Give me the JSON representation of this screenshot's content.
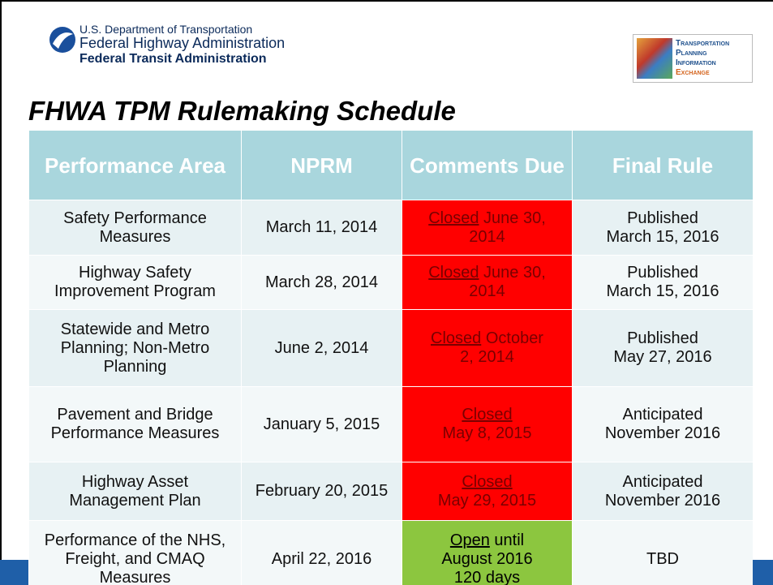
{
  "header": {
    "agency_lines": [
      "U.S. Department of Transportation",
      "Federal Highway Administration",
      "Federal Transit Administration"
    ],
    "exchange_lines": [
      "Transportation",
      "Planning",
      "Information",
      "Exchange"
    ]
  },
  "title": "FHWA TPM Rulemaking Schedule",
  "table": {
    "columns": [
      "Performance Area",
      "NPRM",
      "Comments Due",
      "Final Rule"
    ],
    "rows": [
      {
        "area": "Safety Performance Measures",
        "nprm": "March 11, 2014",
        "status": "Closed",
        "detail": [
          "June 30,",
          "2014"
        ],
        "final": [
          "Published",
          "March 15, 2016"
        ]
      },
      {
        "area": "Highway Safety Improvement Program",
        "nprm": "March 28, 2014",
        "status": "Closed",
        "detail": [
          "June 30,",
          "2014"
        ],
        "final": [
          "Published",
          "March 15, 2016"
        ]
      },
      {
        "area": "Statewide and Metro Planning; Non-Metro Planning",
        "nprm": "June 2, 2014",
        "status": "Closed",
        "detail": [
          "October",
          "2, 2014"
        ],
        "final": [
          "Published",
          "May 27, 2016"
        ]
      },
      {
        "area": "Pavement and Bridge Performance Measures",
        "nprm": "January 5, 2015",
        "status": "Closed",
        "detail": [
          "May 8, 2015"
        ],
        "final": [
          "Anticipated",
          "November 2016"
        ]
      },
      {
        "area": "Highway Asset Management Plan",
        "nprm": "February 20, 2015",
        "status": "Closed",
        "detail": [
          "May 29, 2015"
        ],
        "final": [
          "Anticipated",
          "November 2016"
        ]
      },
      {
        "area": "Performance of the NHS, Freight, and CMAQ Measures",
        "nprm": "April 22, 2016",
        "status": "Open",
        "detail": [
          "until",
          "August  2016",
          "120 days"
        ],
        "final": [
          "TBD"
        ]
      }
    ]
  }
}
